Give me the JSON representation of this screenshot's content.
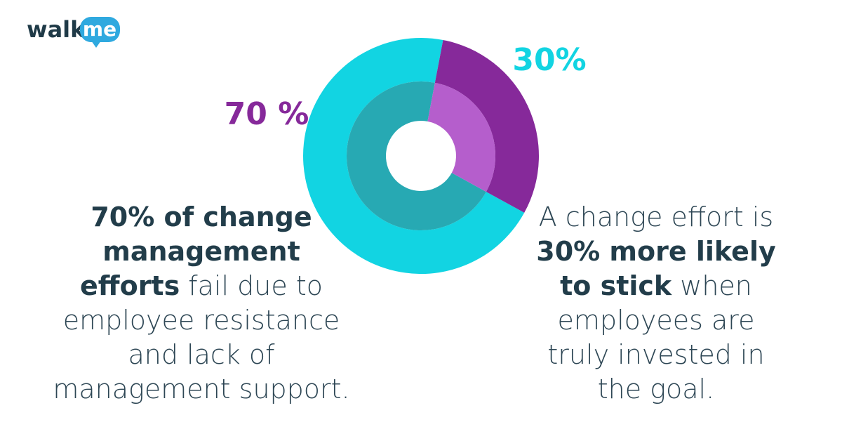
{
  "logo": {
    "text": "walk",
    "badge": "me"
  },
  "chart_data": {
    "type": "donut",
    "values": [
      70,
      30
    ],
    "value_labels": [
      "70 %",
      "30%"
    ],
    "colors": [
      "#12d4e2",
      "#86299a"
    ],
    "inner_colors": [
      "#27a9b3",
      "#b55ecc"
    ],
    "label_colors": [
      "#86299a",
      "#12d4e2"
    ],
    "annotations": [
      {
        "lines": [
          [
            {
              "text": "70% of change",
              "bold": true
            }
          ],
          [
            {
              "text": "management",
              "bold": true
            }
          ],
          [
            {
              "text": "efforts",
              "bold": true
            },
            {
              "text": " fail due to",
              "bold": false
            }
          ],
          [
            {
              "text": "employee resistance",
              "bold": false
            }
          ],
          [
            {
              "text": "and lack of",
              "bold": false
            }
          ],
          [
            {
              "text": "management support.",
              "bold": false
            }
          ]
        ]
      },
      {
        "lines": [
          [
            {
              "text": "A change effort is",
              "bold": false
            }
          ],
          [
            {
              "text": "30% more likely",
              "bold": true
            }
          ],
          [
            {
              "text": "to stick",
              "bold": true
            },
            {
              "text": " when",
              "bold": false
            }
          ],
          [
            {
              "text": "employees are",
              "bold": false
            }
          ],
          [
            {
              "text": "truly invested in",
              "bold": false
            }
          ],
          [
            {
              "text": "the goal.",
              "bold": false
            }
          ]
        ]
      }
    ]
  }
}
